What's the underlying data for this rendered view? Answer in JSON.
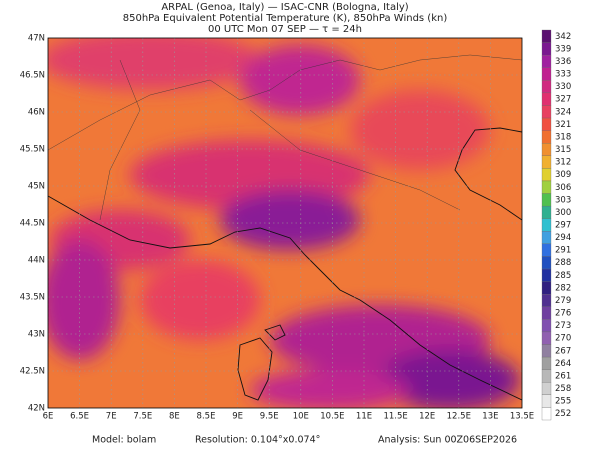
{
  "header": {
    "lines": [
      "ARPAL (Genoa, Italy)   —   ISAC-CNR (Bologna, Italy)",
      "850hPa Equivalent Potential Temperature (K), 850hPa Winds (kn)",
      "00 UTC Mon 07 SEP   —   τ = 24h"
    ]
  },
  "map": {
    "lonlim": [
      6,
      13.5
    ],
    "latlim": [
      42,
      47
    ],
    "lon_ticks": [
      {
        "value": 6,
        "label": "6E"
      },
      {
        "value": 6.5,
        "label": "6.5E"
      },
      {
        "value": 7,
        "label": "7E"
      },
      {
        "value": 7.5,
        "label": "7.5E"
      },
      {
        "value": 8,
        "label": "8E"
      },
      {
        "value": 8.5,
        "label": "8.5E"
      },
      {
        "value": 9,
        "label": "9E"
      },
      {
        "value": 9.5,
        "label": "9.5E"
      },
      {
        "value": 10,
        "label": "10E"
      },
      {
        "value": 10.5,
        "label": "10.5E"
      },
      {
        "value": 11,
        "label": "11E"
      },
      {
        "value": 11.5,
        "label": "11.5E"
      },
      {
        "value": 12,
        "label": "12E"
      },
      {
        "value": 12.5,
        "label": "12.5E"
      },
      {
        "value": 13,
        "label": "13E"
      },
      {
        "value": 13.5,
        "label": "13.5E"
      }
    ],
    "lat_ticks": [
      {
        "value": 47,
        "label": "47N"
      },
      {
        "value": 46.5,
        "label": "46.5N"
      },
      {
        "value": 46,
        "label": "46N"
      },
      {
        "value": 45.5,
        "label": "45.5N"
      },
      {
        "value": 45,
        "label": "45N"
      },
      {
        "value": 44.5,
        "label": "44.5N"
      },
      {
        "value": 44,
        "label": "44N"
      },
      {
        "value": 43.5,
        "label": "43.5N"
      },
      {
        "value": 43,
        "label": "43N"
      },
      {
        "value": 42.5,
        "label": "42.5N"
      },
      {
        "value": 42,
        "label": "42N"
      }
    ]
  },
  "colorbar": {
    "ticks": [
      342,
      339,
      336,
      333,
      330,
      327,
      324,
      321,
      318,
      315,
      312,
      309,
      306,
      303,
      300,
      297,
      294,
      291,
      288,
      285,
      282,
      279,
      276,
      273,
      270,
      267,
      264,
      261,
      258,
      255,
      252
    ],
    "colors": [
      "#5a1070",
      "#7a1890",
      "#a020a0",
      "#c02090",
      "#d02a80",
      "#e03070",
      "#e84060",
      "#f05040",
      "#f07030",
      "#f09030",
      "#f0b030",
      "#e0d030",
      "#a0d040",
      "#50c050",
      "#30b090",
      "#30c0d0",
      "#40a0e0",
      "#3070e0",
      "#2050c0",
      "#2030a0",
      "#302080",
      "#503090",
      "#7040a0",
      "#8050b0",
      "#9060b0",
      "#9080a0",
      "#a0a0a0",
      "#b8b8b8",
      "#d0d0d0",
      "#e8e8e8",
      "#ffffff"
    ]
  },
  "footer": {
    "model": "Model: bolam",
    "resolution": "Resolution: 0.104°x0.074°",
    "analysis": "Analysis: Sun 00Z06SEP2026"
  }
}
